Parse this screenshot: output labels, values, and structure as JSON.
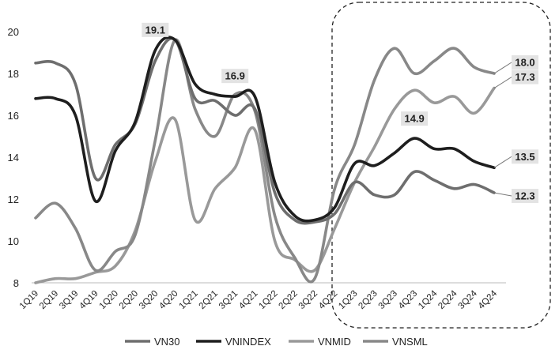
{
  "chart_data": {
    "type": "line",
    "categories": [
      "1Q19",
      "2Q19",
      "3Q19",
      "4Q19",
      "1Q20",
      "2Q20",
      "3Q20",
      "4Q20",
      "1Q21",
      "2Q21",
      "3Q21",
      "4Q21",
      "1Q22",
      "2Q22",
      "3Q22",
      "4Q22",
      "1Q23",
      "2Q23",
      "3Q23",
      "4Q23",
      "1Q24",
      "2Q24",
      "3Q24",
      "4Q24"
    ],
    "ylim": [
      8,
      20
    ],
    "yticks": [
      "8",
      "10",
      "12",
      "14",
      "16",
      "18",
      "20"
    ],
    "grid": false,
    "legend_position": "bottom",
    "series": [
      {
        "name": "VN30",
        "color": "#6e6e6e",
        "values": [
          18.5,
          18.5,
          17.5,
          13.0,
          14.6,
          15.6,
          18.6,
          19.6,
          16.8,
          16.7,
          16.0,
          16.3,
          12.3,
          11.0,
          10.9,
          11.3,
          12.8,
          12.2,
          12.2,
          13.3,
          12.9,
          12.5,
          12.7,
          12.3
        ]
      },
      {
        "name": "VNINDEX",
        "color": "#1e1e1e",
        "values": [
          16.8,
          16.8,
          16.0,
          11.9,
          14.3,
          15.7,
          19.1,
          19.6,
          17.5,
          17.0,
          16.9,
          16.9,
          12.8,
          11.2,
          11.0,
          11.6,
          13.7,
          13.6,
          14.2,
          14.9,
          14.4,
          14.4,
          13.8,
          13.5
        ]
      },
      {
        "name": "VNMID",
        "color": "#999999",
        "values": [
          8.0,
          8.2,
          8.2,
          8.5,
          8.8,
          10.5,
          13.8,
          15.8,
          11.0,
          12.5,
          13.5,
          15.3,
          10.0,
          9.1,
          8.6,
          10.6,
          12.8,
          14.5,
          16.3,
          17.2,
          16.6,
          16.9,
          16.1,
          17.3
        ]
      },
      {
        "name": "VNSML",
        "color": "#888888",
        "values": [
          11.1,
          11.8,
          10.6,
          8.6,
          9.5,
          10.3,
          14.8,
          19.6,
          16.3,
          15.0,
          17.0,
          16.2,
          11.2,
          9.2,
          8.2,
          12.5,
          14.6,
          17.7,
          19.2,
          18.0,
          18.6,
          19.2,
          18.3,
          18.0
        ]
      }
    ],
    "annotations": [
      {
        "text": "19.1",
        "series": "VNINDEX",
        "category": "3Q20"
      },
      {
        "text": "16.9",
        "series": "VNINDEX",
        "category": "3Q21"
      },
      {
        "text": "14.9",
        "series": "VNINDEX",
        "category": "4Q23"
      },
      {
        "text": "18.0",
        "series": "VNSML",
        "category": "4Q24"
      },
      {
        "text": "17.3",
        "series": "VNMID",
        "category": "4Q24"
      },
      {
        "text": "13.5",
        "series": "VNINDEX",
        "category": "4Q24"
      },
      {
        "text": "12.3",
        "series": "VN30",
        "category": "4Q24"
      }
    ]
  }
}
